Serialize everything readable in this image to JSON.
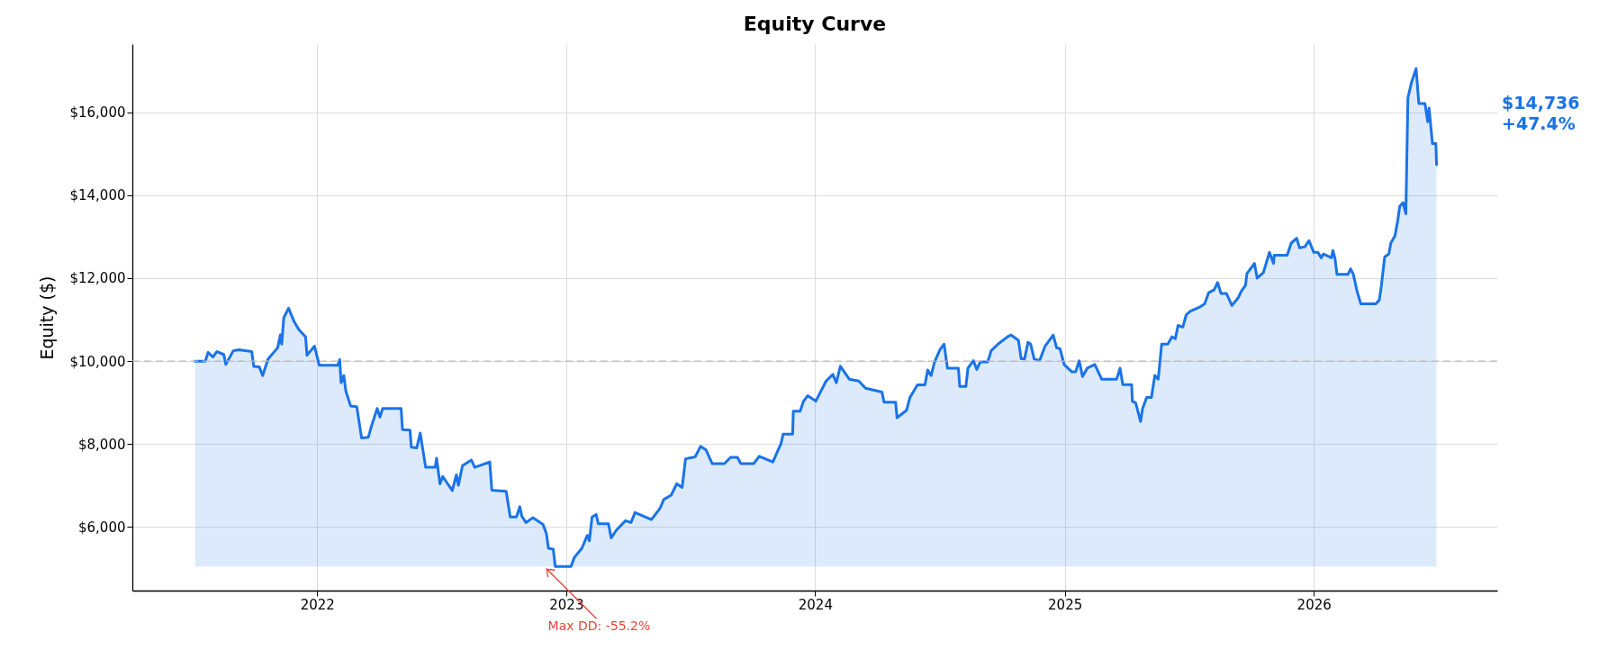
{
  "chart_data": {
    "type": "area",
    "title": "Equity Curve",
    "ylabel": "Equity ($)",
    "xlim": [
      "2021-04-05",
      "2026-09-27"
    ],
    "xticks": [
      "2022",
      "2023",
      "2024",
      "2025",
      "2026"
    ],
    "ylim": [
      4470,
      17640
    ],
    "yticks": [
      {
        "value": 6000,
        "label": "$6,000"
      },
      {
        "value": 8000,
        "label": "$8,000"
      },
      {
        "value": 10000,
        "label": "$10,000"
      },
      {
        "value": 12000,
        "label": "$12,000"
      },
      {
        "value": 14000,
        "label": "$14,000"
      },
      {
        "value": 16000,
        "label": "$16,000"
      }
    ],
    "grid": true,
    "line_style": "solid",
    "marker": "none",
    "ref_lines": [
      {
        "axis": "y",
        "value": 10000,
        "label": null,
        "color": "#bbbbbb",
        "line_style": "dashed"
      }
    ],
    "annotations": [
      "Max DD: -55.2%",
      "$14,736\n+47.4%"
    ],
    "series": [
      {
        "color": "#1a73e8",
        "x": [
          "2021-07-06",
          "2021-07-21",
          "2021-07-25",
          "2021-08-01",
          "2021-08-07",
          "2021-08-17",
          "2021-08-20",
          "2021-08-31",
          "2021-09-08",
          "2021-09-27",
          "2021-09-30",
          "2021-10-08",
          "2021-10-13",
          "2021-10-21",
          "2021-11-04",
          "2021-11-08",
          "2021-11-10",
          "2021-11-13",
          "2021-11-20",
          "2021-11-28",
          "2021-12-05",
          "2021-12-15",
          "2021-12-17",
          "2021-12-28",
          "2022-01-04",
          "2022-01-31",
          "2022-02-03",
          "2022-02-05",
          "2022-02-09",
          "2022-02-12",
          "2022-02-19",
          "2022-02-28",
          "2022-03-07",
          "2022-03-17",
          "2022-03-22",
          "2022-03-30",
          "2022-04-03",
          "2022-04-07",
          "2022-05-04",
          "2022-05-06",
          "2022-05-17",
          "2022-05-19",
          "2022-05-27",
          "2022-06-01",
          "2022-06-09",
          "2022-06-23",
          "2022-06-25",
          "2022-06-30",
          "2022-07-04",
          "2022-07-18",
          "2022-07-24",
          "2022-07-27",
          "2022-08-02",
          "2022-08-15",
          "2022-08-20",
          "2022-09-11",
          "2022-09-14",
          "2022-10-05",
          "2022-10-11",
          "2022-10-20",
          "2022-10-25",
          "2022-10-28",
          "2022-11-03",
          "2022-11-13",
          "2022-11-28",
          "2022-12-03",
          "2022-12-06",
          "2022-12-13",
          "2022-12-16",
          "2023-01-08",
          "2023-01-13",
          "2023-01-24",
          "2023-02-01",
          "2023-02-04",
          "2023-02-08",
          "2023-02-14",
          "2023-02-17",
          "2023-03-04",
          "2023-03-08",
          "2023-03-16",
          "2023-03-29",
          "2023-04-06",
          "2023-04-12",
          "2023-05-06",
          "2023-05-19",
          "2023-05-24",
          "2023-06-04",
          "2023-06-12",
          "2023-06-20",
          "2023-06-25",
          "2023-07-09",
          "2023-07-17",
          "2023-07-25",
          "2023-08-03",
          "2023-08-21",
          "2023-08-30",
          "2023-09-09",
          "2023-09-14",
          "2023-10-03",
          "2023-10-11",
          "2023-10-31",
          "2023-11-12",
          "2023-11-15",
          "2023-11-29",
          "2023-11-30",
          "2023-12-10",
          "2023-12-15",
          "2023-12-21",
          "2024-01-02",
          "2024-01-17",
          "2024-01-27",
          "2024-02-01",
          "2024-02-07",
          "2024-02-20",
          "2024-03-05",
          "2024-03-15",
          "2024-04-08",
          "2024-04-11",
          "2024-04-28",
          "2024-04-30",
          "2024-05-14",
          "2024-05-19",
          "2024-05-30",
          "2024-06-10",
          "2024-06-14",
          "2024-06-19",
          "2024-06-24",
          "2024-07-02",
          "2024-07-08",
          "2024-07-13",
          "2024-07-29",
          "2024-07-31",
          "2024-08-09",
          "2024-08-12",
          "2024-08-20",
          "2024-08-25",
          "2024-08-30",
          "2024-09-10",
          "2024-09-15",
          "2024-09-25",
          "2024-10-09",
          "2024-10-14",
          "2024-10-25",
          "2024-10-29",
          "2024-11-03",
          "2024-11-08",
          "2024-11-12",
          "2024-11-17",
          "2024-11-25",
          "2024-12-03",
          "2024-12-15",
          "2024-12-20",
          "2024-12-25",
          "2024-12-31",
          "2025-01-11",
          "2025-01-17",
          "2025-01-22",
          "2025-01-27",
          "2025-02-03",
          "2025-02-14",
          "2025-02-24",
          "2025-03-18",
          "2025-03-23",
          "2025-03-27",
          "2025-04-09",
          "2025-04-10",
          "2025-04-15",
          "2025-04-22",
          "2025-04-25",
          "2025-05-01",
          "2025-05-08",
          "2025-05-13",
          "2025-05-18",
          "2025-05-23",
          "2025-06-01",
          "2025-06-07",
          "2025-06-12",
          "2025-06-16",
          "2025-06-23",
          "2025-06-28",
          "2025-07-04",
          "2025-07-17",
          "2025-07-25",
          "2025-07-31",
          "2025-08-08",
          "2025-08-13",
          "2025-08-18",
          "2025-08-26",
          "2025-09-03",
          "2025-09-12",
          "2025-09-17",
          "2025-09-23",
          "2025-09-25",
          "2025-10-06",
          "2025-10-10",
          "2025-10-19",
          "2025-10-28",
          "2025-11-03",
          "2025-11-04",
          "2025-11-23",
          "2025-11-29",
          "2025-12-07",
          "2025-12-11",
          "2025-12-19",
          "2025-12-25",
          "2026-01-01",
          "2026-01-07",
          "2026-01-12",
          "2026-01-15",
          "2026-01-27",
          "2026-01-29",
          "2026-02-01",
          "2026-02-04",
          "2026-02-20",
          "2026-02-24",
          "2026-02-28",
          "2026-03-06",
          "2026-03-11",
          "2026-04-02",
          "2026-04-07",
          "2026-04-10",
          "2026-04-15",
          "2026-04-21",
          "2026-04-24",
          "2026-04-30",
          "2026-05-04",
          "2026-05-07",
          "2026-05-12",
          "2026-05-16",
          "2026-05-19",
          "2026-05-24",
          "2026-05-31",
          "2026-06-04",
          "2026-06-13",
          "2026-06-17",
          "2026-06-19",
          "2026-06-24",
          "2026-06-29",
          "2026-06-30"
        ],
        "values": [
          10000,
          10000,
          10210,
          10100,
          10230,
          10160,
          9920,
          10250,
          10275,
          10230,
          9875,
          9860,
          9650,
          10050,
          10320,
          10630,
          10410,
          11045,
          11275,
          10960,
          10760,
          10585,
          10140,
          10360,
          9900,
          9900,
          10035,
          9480,
          9650,
          9275,
          8920,
          8900,
          8150,
          8165,
          8460,
          8860,
          8650,
          8860,
          8860,
          8350,
          8340,
          7925,
          7910,
          8265,
          7440,
          7440,
          7660,
          7040,
          7220,
          6880,
          7260,
          7010,
          7480,
          7615,
          7440,
          7570,
          6890,
          6860,
          6245,
          6245,
          6490,
          6260,
          6110,
          6225,
          6065,
          5845,
          5490,
          5470,
          5050,
          5050,
          5270,
          5490,
          5800,
          5670,
          6245,
          6305,
          6080,
          6080,
          5740,
          5935,
          6155,
          6110,
          6350,
          6180,
          6465,
          6665,
          6770,
          7045,
          6955,
          7645,
          7690,
          7945,
          7860,
          7530,
          7530,
          7680,
          7680,
          7530,
          7530,
          7705,
          7570,
          8015,
          8240,
          8240,
          8795,
          8795,
          9035,
          9165,
          9035,
          9520,
          9680,
          9480,
          9875,
          9565,
          9520,
          9345,
          9255,
          9010,
          9010,
          8635,
          8815,
          9125,
          9430,
          9430,
          9785,
          9650,
          9980,
          10275,
          10410,
          9830,
          9830,
          9390,
          9390,
          9830,
          10010,
          9800,
          9980,
          9980,
          10250,
          10410,
          10585,
          10630,
          10500,
          10055,
          10055,
          10450,
          10410,
          10055,
          10010,
          10360,
          10630,
          10320,
          10300,
          9920,
          9745,
          9745,
          10010,
          9630,
          9830,
          9920,
          9565,
          9565,
          9830,
          9435,
          9435,
          9035,
          8990,
          8545,
          8855,
          9125,
          9125,
          9655,
          9565,
          10410,
          10410,
          10585,
          10540,
          10860,
          10820,
          11115,
          11205,
          11295,
          11380,
          11650,
          11720,
          11895,
          11630,
          11630,
          11340,
          11520,
          11690,
          11830,
          12110,
          12355,
          12000,
          12130,
          12620,
          12355,
          12550,
          12550,
          12845,
          12960,
          12730,
          12755,
          12905,
          12620,
          12620,
          12490,
          12580,
          12490,
          12665,
          12490,
          12090,
          12090,
          12225,
          12090,
          11650,
          11380,
          11380,
          11470,
          11805,
          12515,
          12580,
          12845,
          13020,
          13375,
          13730,
          13820,
          13550,
          16345,
          16700,
          17050,
          16210,
          16210,
          15770,
          16100,
          15240,
          15240,
          14736
        ]
      }
    ]
  }
}
